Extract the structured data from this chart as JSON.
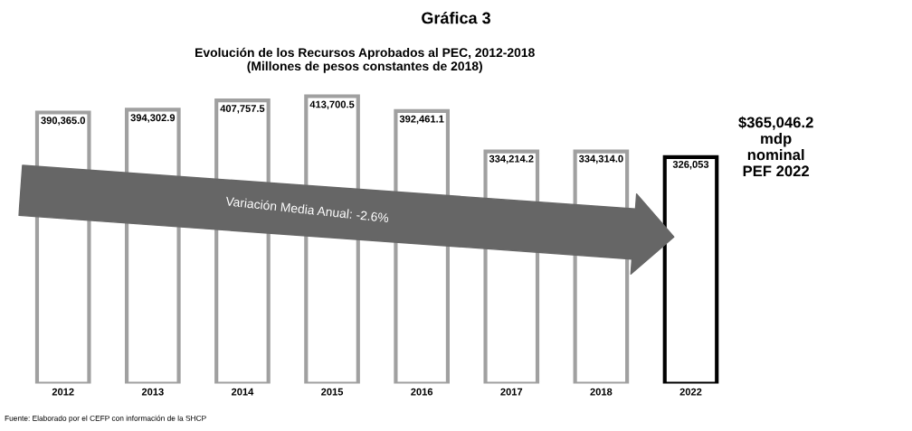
{
  "chart_data": {
    "type": "bar",
    "title": "Gráfica 3",
    "subtitle": "Evolución de los Recursos Aprobados al PEC, 2012-2018\n(Millones de pesos constantes de 2018)",
    "categories": [
      "2012",
      "2013",
      "2014",
      "2015",
      "2016",
      "2017",
      "2018",
      "2022"
    ],
    "values": [
      390365.0,
      394302.9,
      407757.5,
      413700.5,
      392461.1,
      334214.2,
      334314.0,
      326053
    ],
    "value_labels": [
      "390,365.0",
      "394,302.9",
      "407,757.5",
      "413,700.5",
      "392,461.1",
      "334,214.2",
      "334,314.0",
      "326,053"
    ],
    "colors": [
      "#a0a0a0",
      "#a0a0a0",
      "#a0a0a0",
      "#a0a0a0",
      "#a0a0a0",
      "#a0a0a0",
      "#a0a0a0",
      "#000000"
    ],
    "annotations": [
      "Variación Media Anual: -2.6%",
      "$365,046.2\nmdp\nnominal\nPEF 2022",
      "Fuente: Elaborado por el CEFP con información de la SHCP"
    ],
    "grid": false,
    "legend": false
  }
}
